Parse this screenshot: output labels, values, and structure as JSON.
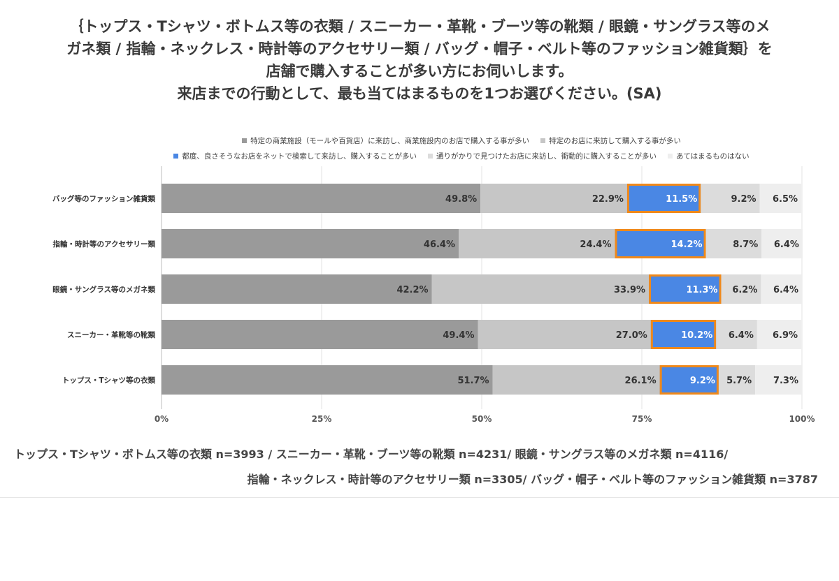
{
  "question": {
    "line1": "｛トップス・Tシャツ・ボトムス等の衣類 / スニーカー・革靴・ブーツ等の靴類 / 眼鏡・サングラス等のメ",
    "line2": "ガネ類 / 指輪・ネックレス・時計等のアクセサリー類 / バッグ・帽子・ベルト等のファッション雑貨類｝を",
    "line3": "店舗で購入することが多い方にお伺いします。",
    "line4": "来店までの行動として、最も当てはまるものを1つお選びください。(SA)"
  },
  "chart_data": {
    "type": "bar",
    "orientation": "horizontal",
    "stacked": "100%",
    "categories": [
      "バッグ等のファッション雑貨類",
      "指輪・時計等のアクセサリー類",
      "眼鏡・サングラス等のメガネ類",
      "スニーカー・革靴等の靴類",
      "トップス・Tシャツ等の衣類"
    ],
    "series": [
      {
        "name": "特定の商業施設（モールや百貨店）に来訪し、商業施設内のお店で購入する事が多い",
        "color": "#9a9a9a",
        "values": [
          49.8,
          46.4,
          42.2,
          49.4,
          51.7
        ]
      },
      {
        "name": "特定のお店に来訪して購入する事が多い",
        "color": "#c6c6c6",
        "values": [
          22.9,
          24.4,
          33.9,
          27.0,
          26.1
        ]
      },
      {
        "name": "都度、良さそうなお店をネットで検索して来訪し、購入することが多い",
        "color": "#4a87e4",
        "highlight": "#f0891a",
        "values": [
          11.5,
          14.2,
          11.3,
          10.2,
          9.2
        ]
      },
      {
        "name": "通りがかりで見つけたお店に来訪し、衝動的に購入することが多い",
        "color": "#dcdcdc",
        "values": [
          9.2,
          8.7,
          6.2,
          6.4,
          5.7
        ]
      },
      {
        "name": "あてはまるものはない",
        "color": "#eeeeee",
        "values": [
          6.5,
          6.4,
          6.4,
          6.9,
          7.3
        ]
      }
    ],
    "value_labels": [
      [
        "49.8%",
        "22.9%",
        "11.5%",
        "9.2%",
        "6.5%"
      ],
      [
        "46.4%",
        "24.4%",
        "14.2%",
        "8.7%",
        "6.4%"
      ],
      [
        "42.2%",
        "33.9%",
        "11.3%",
        "6.2%",
        "6.4%"
      ],
      [
        "49.4%",
        "27.0%",
        "10.2%",
        "6.4%",
        "6.9%"
      ],
      [
        "51.7%",
        "26.1%",
        "9.2%",
        "5.7%",
        "7.3%"
      ]
    ],
    "xlim": [
      0,
      100
    ],
    "xticks": [
      "0%",
      "25%",
      "50%",
      "75%",
      "100%"
    ],
    "legend_position": "top",
    "grid": true
  },
  "footnote": {
    "line1": "トップス・Tシャツ・ボトムス等の衣類 n=3993 / スニーカー・革靴・ブーツ等の靴類 n=4231/ 眼鏡・サングラス等のメガネ類 n=4116/",
    "line2": "指輪・ネックレス・時計等のアクセサリー類 n=3305/ バッグ・帽子・ベルト等のファッション雑貨類 n=3787"
  }
}
